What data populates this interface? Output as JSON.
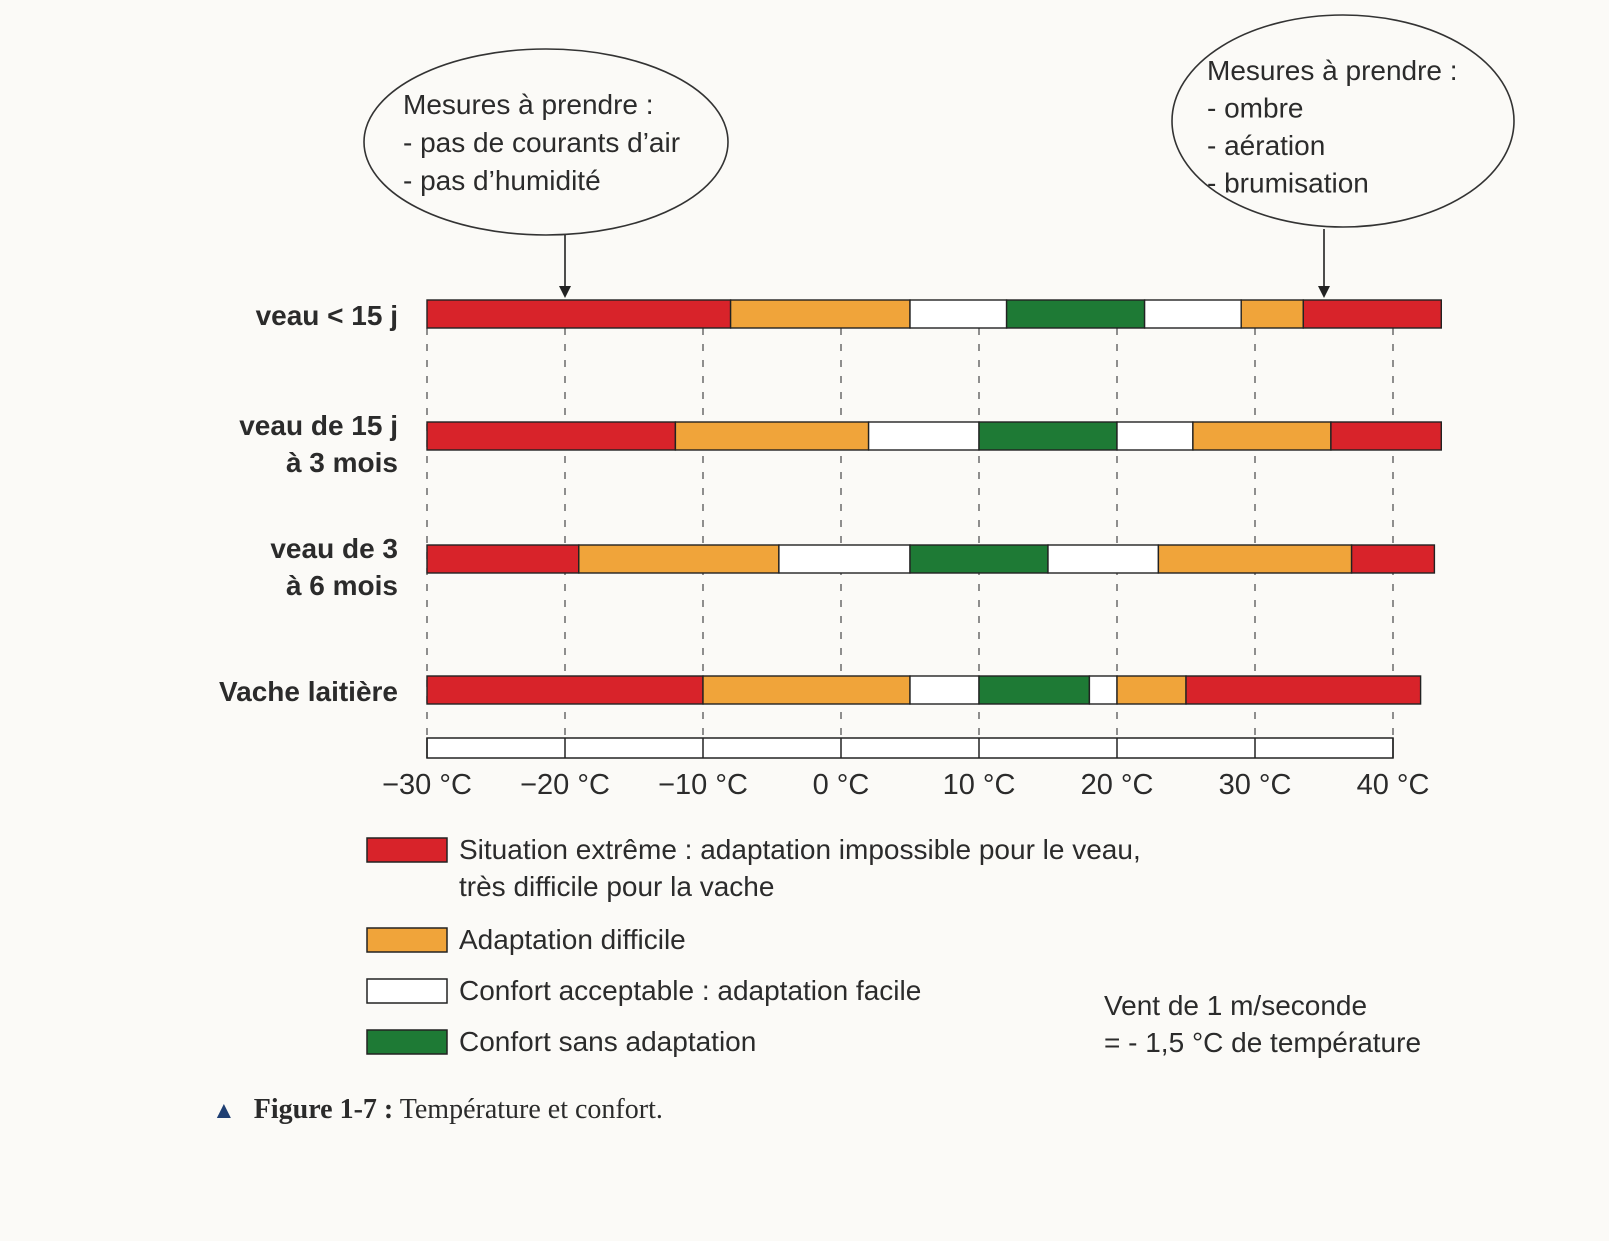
{
  "chart_data": {
    "type": "bar",
    "subtype": "stacked-horizontal-ranges",
    "x_unit": "°C",
    "xlim": [
      -30,
      40
    ],
    "ticks": [
      -30,
      -20,
      -10,
      0,
      10,
      20,
      30,
      40
    ],
    "tick_labels": [
      "−30 °C",
      "−20 °C",
      "−10 °C",
      "0 °C",
      "10 °C",
      "20 °C",
      "30 °C",
      "40 °C"
    ],
    "categories": [
      {
        "label_lines": [
          "veau < 15 j"
        ],
        "segments": [
          {
            "from": -30,
            "to": -8,
            "zone": "extreme"
          },
          {
            "from": -8,
            "to": 5,
            "zone": "difficile"
          },
          {
            "from": 5,
            "to": 12,
            "zone": "acceptable"
          },
          {
            "from": 12,
            "to": 22,
            "zone": "sans"
          },
          {
            "from": 22,
            "to": 29,
            "zone": "acceptable"
          },
          {
            "from": 29,
            "to": 33.5,
            "zone": "difficile"
          },
          {
            "from": 33.5,
            "to": 43.5,
            "zone": "extreme"
          }
        ]
      },
      {
        "label_lines": [
          "veau de 15 j",
          "à 3 mois"
        ],
        "segments": [
          {
            "from": -30,
            "to": -12,
            "zone": "extreme"
          },
          {
            "from": -12,
            "to": 2,
            "zone": "difficile"
          },
          {
            "from": 2,
            "to": 10,
            "zone": "acceptable"
          },
          {
            "from": 10,
            "to": 20,
            "zone": "sans"
          },
          {
            "from": 20,
            "to": 25.5,
            "zone": "acceptable"
          },
          {
            "from": 25.5,
            "to": 35.5,
            "zone": "difficile"
          },
          {
            "from": 35.5,
            "to": 43.5,
            "zone": "extreme"
          }
        ]
      },
      {
        "label_lines": [
          "veau de 3",
          "à 6 mois"
        ],
        "segments": [
          {
            "from": -30,
            "to": -19,
            "zone": "extreme"
          },
          {
            "from": -19,
            "to": -4.5,
            "zone": "difficile"
          },
          {
            "from": -4.5,
            "to": 5,
            "zone": "acceptable"
          },
          {
            "from": 5,
            "to": 15,
            "zone": "sans"
          },
          {
            "from": 15,
            "to": 23,
            "zone": "acceptable"
          },
          {
            "from": 23,
            "to": 37,
            "zone": "difficile"
          },
          {
            "from": 37,
            "to": 43,
            "zone": "extreme"
          }
        ]
      },
      {
        "label_lines": [
          "Vache laitière"
        ],
        "segments": [
          {
            "from": -30,
            "to": -10,
            "zone": "extreme"
          },
          {
            "from": -10,
            "to": 5,
            "zone": "difficile"
          },
          {
            "from": 5,
            "to": 10,
            "zone": "acceptable"
          },
          {
            "from": 10,
            "to": 18,
            "zone": "sans"
          },
          {
            "from": 18,
            "to": 20,
            "zone": "acceptable"
          },
          {
            "from": 20,
            "to": 25,
            "zone": "difficile"
          },
          {
            "from": 25,
            "to": 42,
            "zone": "extreme"
          }
        ]
      }
    ],
    "zones": {
      "extreme": {
        "color": "#d8232a",
        "label_lines": [
          "Situation extrême : adaptation impossible pour le veau,",
          "très difficile pour la vache"
        ]
      },
      "difficile": {
        "color": "#f0a43a",
        "label_lines": [
          "Adaptation difficile"
        ]
      },
      "acceptable": {
        "color": "#ffffff",
        "label_lines": [
          "Confort acceptable : adaptation facile"
        ]
      },
      "sans": {
        "color": "#1e7a35",
        "label_lines": [
          "Confort sans adaptation"
        ]
      }
    },
    "legend_order": [
      "extreme",
      "difficile",
      "acceptable",
      "sans"
    ],
    "annotations": [
      {
        "lines": [
          "Mesures à prendre :",
          "- pas de courants d’air",
          "- pas d’humidité"
        ],
        "points_to": -20
      },
      {
        "lines": [
          "Mesures à prendre :",
          "- ombre",
          "- aération",
          "- brumisation"
        ],
        "points_to": 35
      }
    ],
    "note_lines": [
      "Vent de 1 m/seconde",
      "= - 1,5 °C de température"
    ]
  },
  "caption": {
    "marker": "▲",
    "figure": "Figure 1-7 :",
    "text": "Température et confort."
  }
}
